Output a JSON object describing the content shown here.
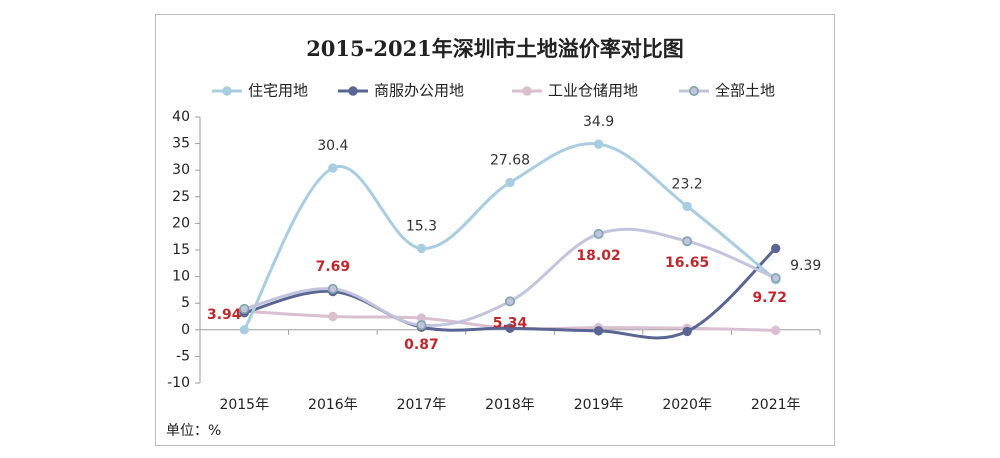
{
  "chart_data": {
    "type": "line",
    "title": "2015-2021年深圳市土地溢价率对比图",
    "unit_label": "单位：%",
    "categories": [
      "2015年",
      "2016年",
      "2017年",
      "2018年",
      "2019年",
      "2020年",
      "2021年"
    ],
    "ylim": [
      -10,
      40
    ],
    "yticks": [
      -10,
      -5,
      0,
      5,
      10,
      15,
      20,
      25,
      30,
      35,
      40
    ],
    "grid": false,
    "legend_position": "top",
    "series": [
      {
        "name": "住宅用地",
        "color": "#a9cde0",
        "values": [
          0,
          30.4,
          15.3,
          27.68,
          34.9,
          23.2,
          9.39
        ],
        "labels": [
          "",
          "30.4",
          "15.3",
          "27.68",
          "34.9",
          "23.2",
          "9.39"
        ],
        "label_color": "#333333"
      },
      {
        "name": "商服办公用地",
        "color": "#5a6594",
        "values": [
          3.2,
          7.2,
          0.5,
          0.3,
          -0.2,
          -0.3,
          15.3
        ],
        "labels": [
          "",
          "",
          "",
          "",
          "",
          "",
          ""
        ],
        "label_color": "#333333"
      },
      {
        "name": "工业仓储用地",
        "color": "#d9bfcf",
        "values": [
          3.5,
          2.5,
          2.2,
          0.3,
          0.4,
          0.3,
          -0.1
        ],
        "labels": [
          "",
          "",
          "",
          "",
          "",
          "",
          ""
        ],
        "label_color": "#333333"
      },
      {
        "name": "全部土地",
        "color": "#c2c4dd",
        "values": [
          3.94,
          7.69,
          0.87,
          5.34,
          18.02,
          16.65,
          9.72
        ],
        "labels": [
          "3.94",
          "7.69",
          "0.87",
          "5.34",
          "18.02",
          "16.65",
          "9.72"
        ],
        "label_color": "#c0282d"
      }
    ]
  }
}
